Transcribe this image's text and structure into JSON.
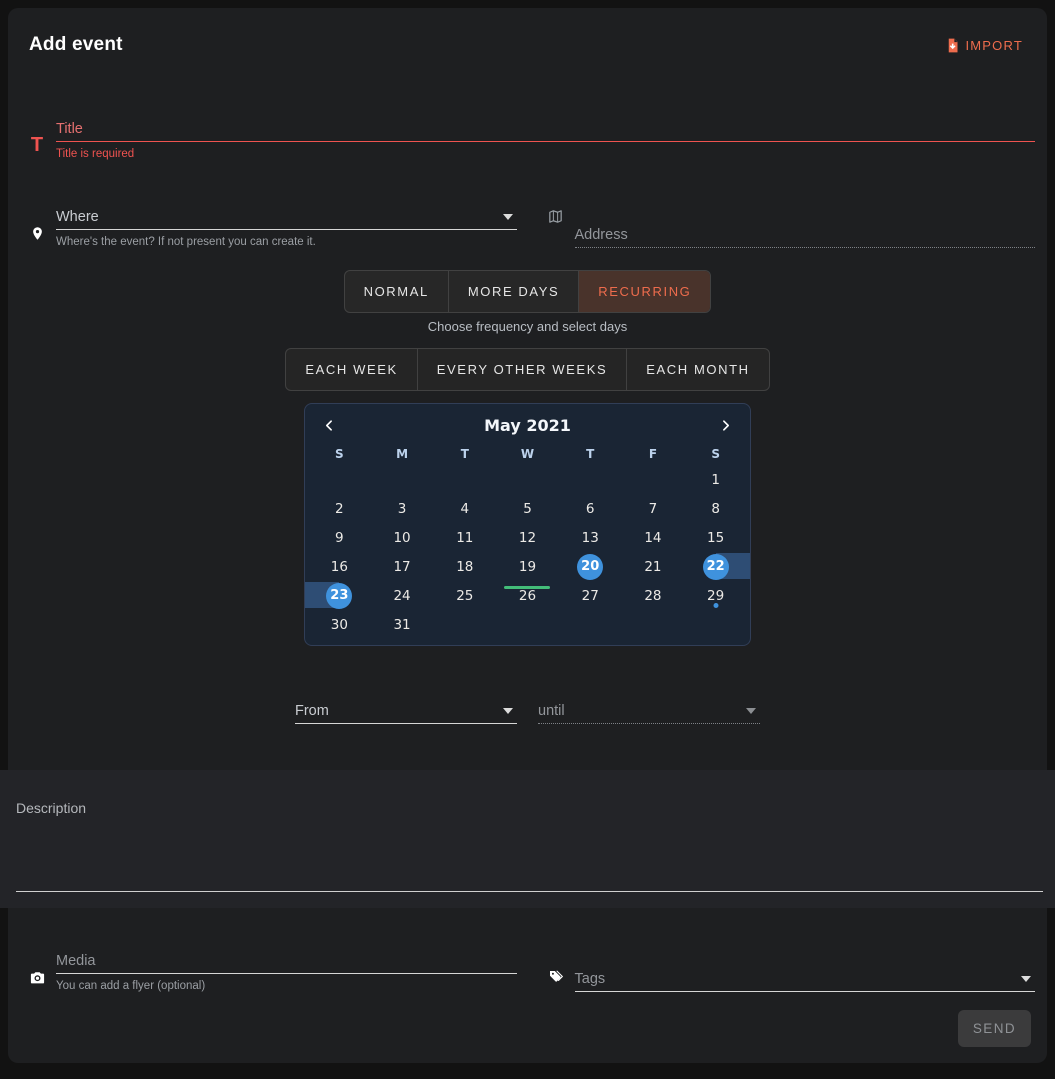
{
  "header": {
    "title": "Add event",
    "import_label": "IMPORT"
  },
  "fields": {
    "title": {
      "placeholder": "Title",
      "error": "Title is required"
    },
    "where": {
      "placeholder": "Where",
      "helper": "Where's the event? If not present you can create it."
    },
    "address": {
      "placeholder": "Address"
    },
    "from": {
      "placeholder": "From"
    },
    "until": {
      "placeholder": "until"
    },
    "description": {
      "placeholder": "Description"
    },
    "media": {
      "placeholder": "Media",
      "helper": "You can add a flyer (optional)"
    },
    "tags": {
      "placeholder": "Tags"
    }
  },
  "type_tabs": [
    {
      "label": "NORMAL",
      "active": false
    },
    {
      "label": "MORE DAYS",
      "active": false
    },
    {
      "label": "RECURRING",
      "active": true
    }
  ],
  "frequency": {
    "caption": "Choose frequency and select days",
    "options": [
      "EACH WEEK",
      "EVERY OTHER WEEKS",
      "EACH MONTH"
    ]
  },
  "calendar": {
    "title": "May 2021",
    "weekdays": [
      "S",
      "M",
      "T",
      "W",
      "T",
      "F",
      "S"
    ],
    "weeks": [
      [
        "",
        "",
        "",
        "",
        "",
        "",
        "1"
      ],
      [
        "2",
        "3",
        "4",
        "5",
        "6",
        "7",
        "8"
      ],
      [
        "9",
        "10",
        "11",
        "12",
        "13",
        "14",
        "15"
      ],
      [
        "16",
        "17",
        "18",
        "19",
        "20",
        "21",
        "22"
      ],
      [
        "23",
        "24",
        "25",
        "26",
        "27",
        "28",
        "29"
      ],
      [
        "30",
        "31",
        "",
        "",
        "",
        "",
        ""
      ]
    ],
    "selected_days": [
      20,
      22,
      23
    ],
    "range_band": {
      "right_of": 22,
      "left_of": 23
    },
    "underline_day": 19,
    "dot_day": 29
  },
  "footer": {
    "send_label": "SEND"
  },
  "colors": {
    "accent_orange": "#ee6c4d",
    "error_red": "#ef5350",
    "selected_blue": "#3f92dd",
    "range_blue": "#2e4d74",
    "today_green": "#43bd79",
    "calendar_bg": "#1a2534"
  }
}
